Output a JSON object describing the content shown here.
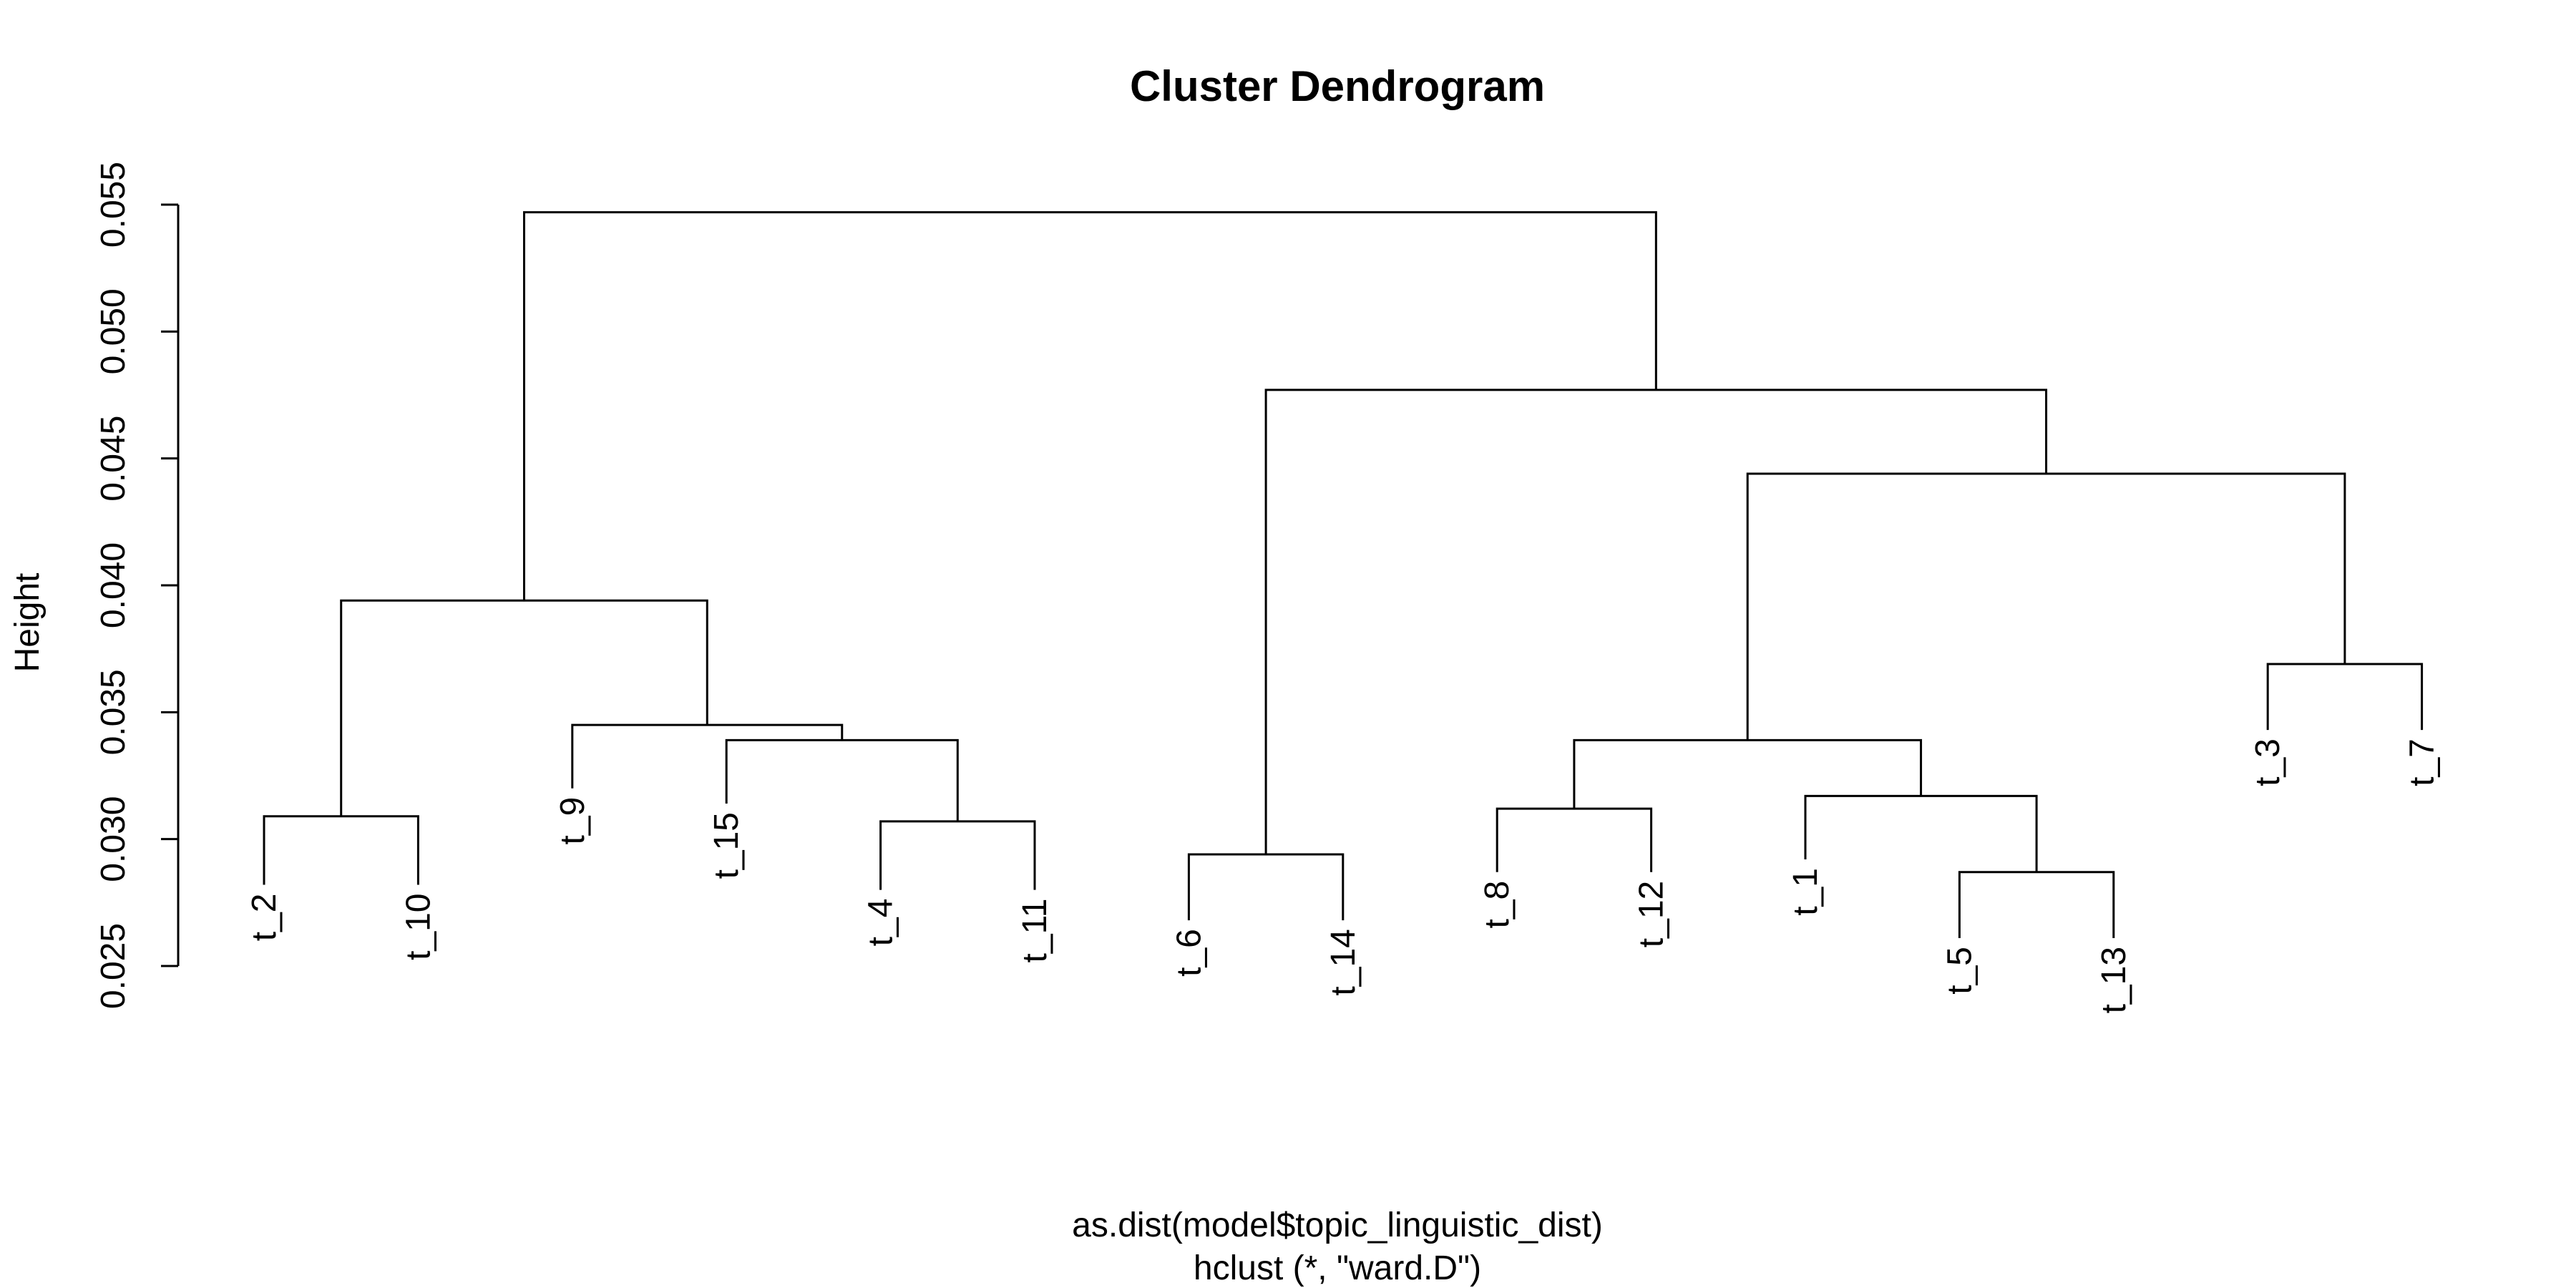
{
  "chart_data": {
    "type": "dendrogram",
    "title": "Cluster Dendrogram",
    "ylabel": "Height",
    "xlabel": "as.dist(model$topic_linguistic_dist)",
    "sublabel": "hclust (*, \"ward.D\")",
    "ylim": [
      0.025,
      0.055
    ],
    "yticks": [
      "0.025",
      "0.030",
      "0.035",
      "0.040",
      "0.045",
      "0.050",
      "0.055"
    ],
    "leaves": [
      {
        "label": "t_2",
        "leaf_height": 0.0282
      },
      {
        "label": "t_10",
        "leaf_height": 0.0282
      },
      {
        "label": "t_9",
        "leaf_height": 0.032
      },
      {
        "label": "t_15",
        "leaf_height": 0.0314
      },
      {
        "label": "t_4",
        "leaf_height": 0.028
      },
      {
        "label": "t_11",
        "leaf_height": 0.028
      },
      {
        "label": "t_6",
        "leaf_height": 0.0268
      },
      {
        "label": "t_14",
        "leaf_height": 0.0268
      },
      {
        "label": "t_8",
        "leaf_height": 0.0287
      },
      {
        "label": "t_12",
        "leaf_height": 0.0287
      },
      {
        "label": "t_1",
        "leaf_height": 0.0292
      },
      {
        "label": "t_5",
        "leaf_height": 0.0261
      },
      {
        "label": "t_13",
        "leaf_height": 0.0261
      },
      {
        "label": "t_3",
        "leaf_height": 0.0343
      },
      {
        "label": "t_7",
        "leaf_height": 0.0343
      }
    ],
    "merges": [
      {
        "left": "L0",
        "right": "L1",
        "height": 0.0309
      },
      {
        "left": "L4",
        "right": "L5",
        "height": 0.0307
      },
      {
        "left": "L3",
        "right": "M1",
        "height": 0.0339
      },
      {
        "left": "L2",
        "right": "M2",
        "height": 0.0345
      },
      {
        "left": "M0",
        "right": "M3",
        "height": 0.0394
      },
      {
        "left": "L6",
        "right": "L7",
        "height": 0.0294
      },
      {
        "left": "L8",
        "right": "L9",
        "height": 0.0312
      },
      {
        "left": "L11",
        "right": "L12",
        "height": 0.0287
      },
      {
        "left": "L10",
        "right": "M7",
        "height": 0.0317
      },
      {
        "left": "M6",
        "right": "M8",
        "height": 0.0339
      },
      {
        "left": "L13",
        "right": "L14",
        "height": 0.0369
      },
      {
        "left": "M9",
        "right": "M10",
        "height": 0.0444
      },
      {
        "left": "M5",
        "right": "M11",
        "height": 0.0477
      },
      {
        "left": "M4",
        "right": "M12",
        "height": 0.0547
      }
    ]
  }
}
